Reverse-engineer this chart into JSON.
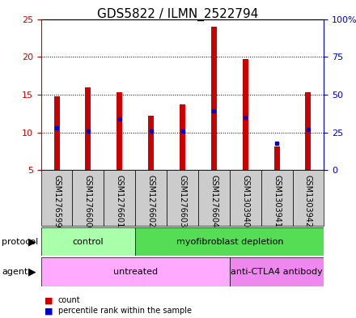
{
  "title": "GDS5822 / ILMN_2522794",
  "samples": [
    "GSM1276599",
    "GSM1276600",
    "GSM1276601",
    "GSM1276602",
    "GSM1276603",
    "GSM1276604",
    "GSM1303940",
    "GSM1303941",
    "GSM1303942"
  ],
  "counts": [
    14.8,
    16.0,
    15.3,
    12.2,
    13.7,
    24.0,
    19.7,
    8.1,
    15.3
  ],
  "percentile_ranks": [
    28,
    26,
    34,
    26,
    26,
    39,
    35,
    18,
    27
  ],
  "ylim_left": [
    5,
    25
  ],
  "ylim_right": [
    0,
    100
  ],
  "yticks_left": [
    5,
    10,
    15,
    20,
    25
  ],
  "yticks_right": [
    0,
    25,
    50,
    75,
    100
  ],
  "ytick_labels_right": [
    "0",
    "25",
    "50",
    "75",
    "100%"
  ],
  "bar_color": "#cc0000",
  "dot_color": "#0000cc",
  "bar_bottom": 5.0,
  "bar_width": 0.18,
  "protocol_groups": [
    {
      "label": "control",
      "start": 0,
      "end": 3,
      "color": "#aaffaa"
    },
    {
      "label": "myofibroblast depletion",
      "start": 3,
      "end": 9,
      "color": "#55dd55"
    }
  ],
  "agent_groups": [
    {
      "label": "untreated",
      "start": 0,
      "end": 6,
      "color": "#ffaaff"
    },
    {
      "label": "anti-CTLA4 antibody",
      "start": 6,
      "end": 9,
      "color": "#ee88ee"
    }
  ],
  "sample_bg_color": "#cccccc",
  "left_axis_color": "#cc0000",
  "right_axis_color": "#0000cc",
  "title_fontsize": 11,
  "tick_fontsize": 8,
  "label_fontsize": 8,
  "sample_fontsize": 7
}
